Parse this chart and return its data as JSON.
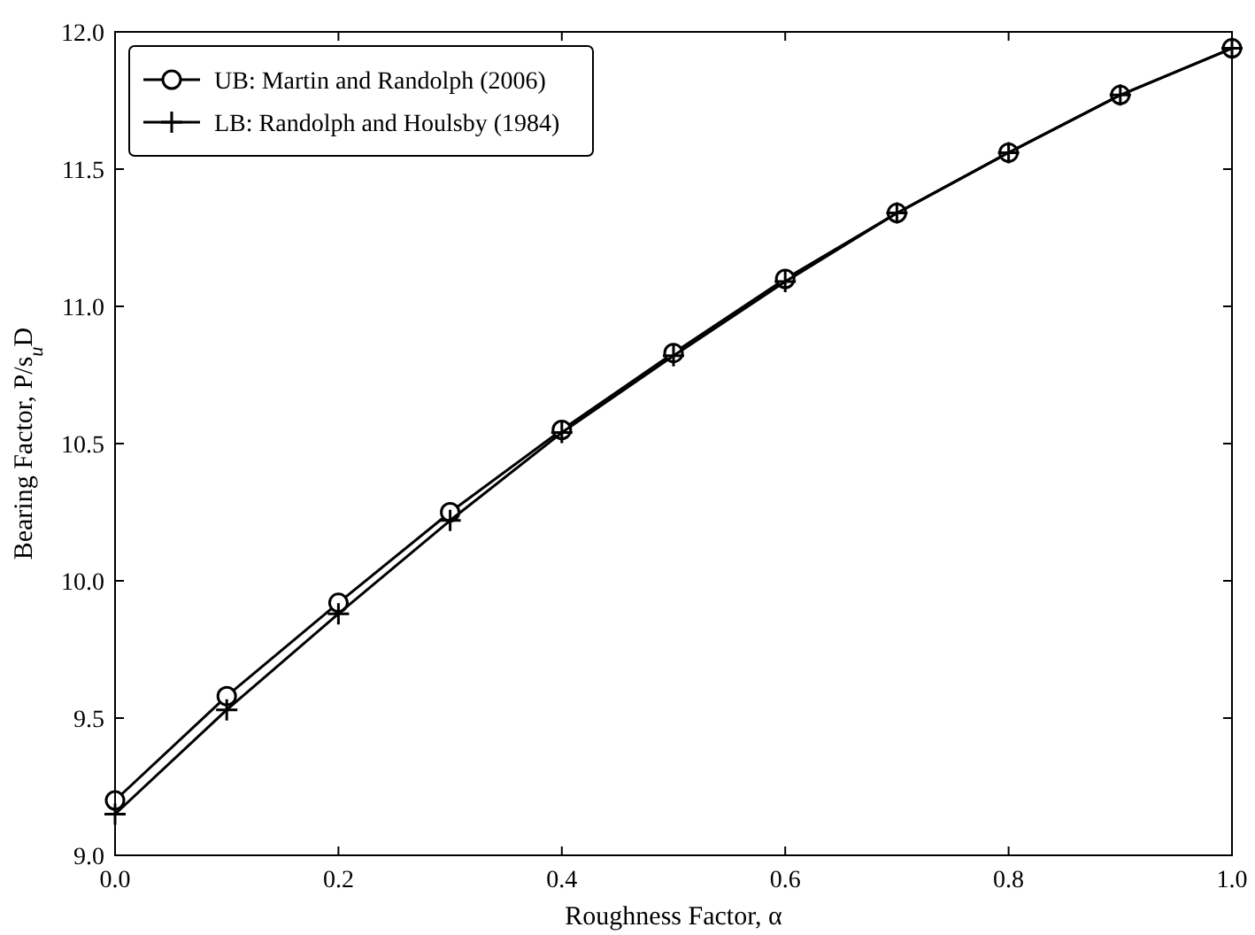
{
  "chart_data": {
    "type": "line",
    "xlabel": "Roughness Factor, α",
    "ylabel": "Bearing Factor, P/s$_{u}$D",
    "x": [
      0,
      0.1,
      0.2,
      0.3,
      0.4,
      0.5,
      0.6,
      0.7,
      0.8,
      0.9,
      1.0
    ],
    "series": [
      {
        "name": "UB: Martin and Randolph (2006)",
        "color": "#000000",
        "marker": "circle",
        "values": [
          9.2,
          9.58,
          9.92,
          10.25,
          10.55,
          10.83,
          11.1,
          11.34,
          11.56,
          11.77,
          11.94
        ]
      },
      {
        "name": "LB: Randolph and Houlsby (1984)",
        "color": "#000000",
        "marker": "cross",
        "values": [
          9.15,
          9.53,
          9.88,
          10.22,
          10.54,
          10.82,
          11.09,
          11.34,
          11.56,
          11.77,
          11.94
        ]
      }
    ],
    "xlim": [
      0,
      1.0
    ],
    "xticks": [
      {
        "value": 0,
        "label": "0.0"
      },
      0.2,
      0.4,
      0.6,
      0.8,
      {
        "value": 1,
        "label": "1.0"
      }
    ],
    "ylim": [
      9.0,
      12.0
    ],
    "yticks": [
      {
        "value": 9,
        "label": "9.0"
      },
      9.5,
      {
        "value": 10,
        "label": "10.0"
      },
      10.5,
      {
        "value": 11,
        "label": "11.0"
      },
      11.5,
      {
        "value": 12,
        "label": "12.0"
      }
    ],
    "grid": false,
    "legend": "top left",
    "line_style": "solid"
  }
}
